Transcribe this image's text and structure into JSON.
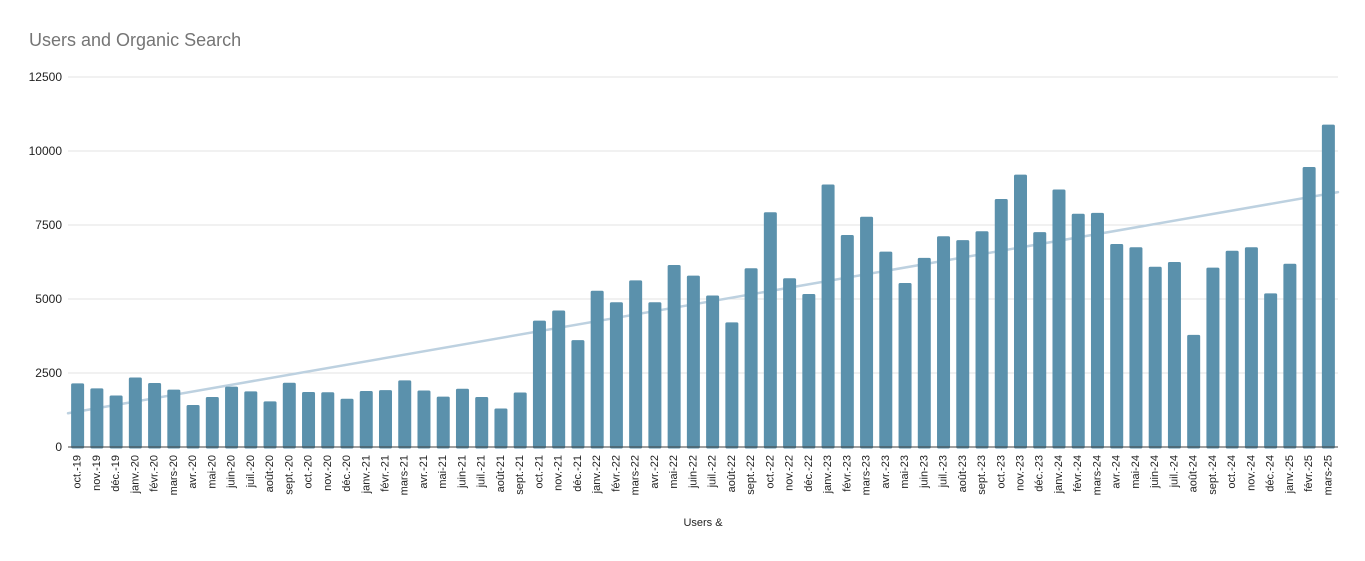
{
  "page": {
    "background": "#ffffff"
  },
  "chart_data": {
    "type": "bar",
    "title": "Users and Organic Search",
    "xlabel": "Users &",
    "ylabel": "",
    "ylim": [
      0,
      12500
    ],
    "y_ticks": [
      0,
      2500,
      5000,
      7500,
      10000,
      12500
    ],
    "grid": true,
    "legend": "none",
    "colors": {
      "bar": "#5b91ac",
      "trendline": "#bdd1e0",
      "gridline": "#e3e3e3",
      "axis_baseline": "#424242",
      "axis_text": "#222222",
      "title_text": "#757575"
    },
    "trendline": {
      "start_value": 1140,
      "end_value": 8610
    },
    "categories": [
      "oct.-19",
      "nov.-19",
      "déc.-19",
      "janv.-20",
      "févr.-20",
      "mars-20",
      "avr.-20",
      "mai-20",
      "juin-20",
      "juil.-20",
      "août-20",
      "sept.-20",
      "oct.-20",
      "nov.-20",
      "déc.-20",
      "janv.-21",
      "févr.-21",
      "mars-21",
      "avr.-21",
      "mai-21",
      "juin-21",
      "juil.-21",
      "août-21",
      "sept.-21",
      "oct.-21",
      "nov.-21",
      "déc.-21",
      "janv.-22",
      "févr.-22",
      "mars-22",
      "avr.-22",
      "mai-22",
      "juin-22",
      "juil.-22",
      "août-22",
      "sept.-22",
      "oct.-22",
      "nov.-22",
      "déc.-22",
      "janv.-23",
      "févr.-23",
      "mars-23",
      "avr.-23",
      "mai-23",
      "juin-23",
      "juil.-23",
      "août-23",
      "sept.-23",
      "oct.-23",
      "nov.-23",
      "déc.-23",
      "janv.-24",
      "févr.-24",
      "mars-24",
      "avr.-24",
      "mai-24",
      "juin-24",
      "juil.-24",
      "août-24",
      "sept.-24",
      "oct.-24",
      "nov.-24",
      "déc.-24",
      "janv.-25",
      "févr.-25",
      "mars-25"
    ],
    "values": [
      2150,
      1980,
      1740,
      2350,
      2160,
      1940,
      1420,
      1690,
      2040,
      1880,
      1540,
      2170,
      1860,
      1850,
      1630,
      1890,
      1920,
      2250,
      1910,
      1700,
      1970,
      1690,
      1300,
      1840,
      4270,
      4610,
      3610,
      5280,
      4890,
      5630,
      4890,
      6150,
      5790,
      5120,
      4210,
      6040,
      7930,
      5700,
      5170,
      8870,
      7160,
      7780,
      6600,
      5540,
      6390,
      7120,
      6990,
      7290,
      8380,
      9200,
      7260,
      8700,
      7880,
      7910,
      6860,
      6750,
      6090,
      6250,
      3790,
      6060,
      6630,
      6750,
      5190,
      6190,
      9460,
      10890
    ]
  }
}
